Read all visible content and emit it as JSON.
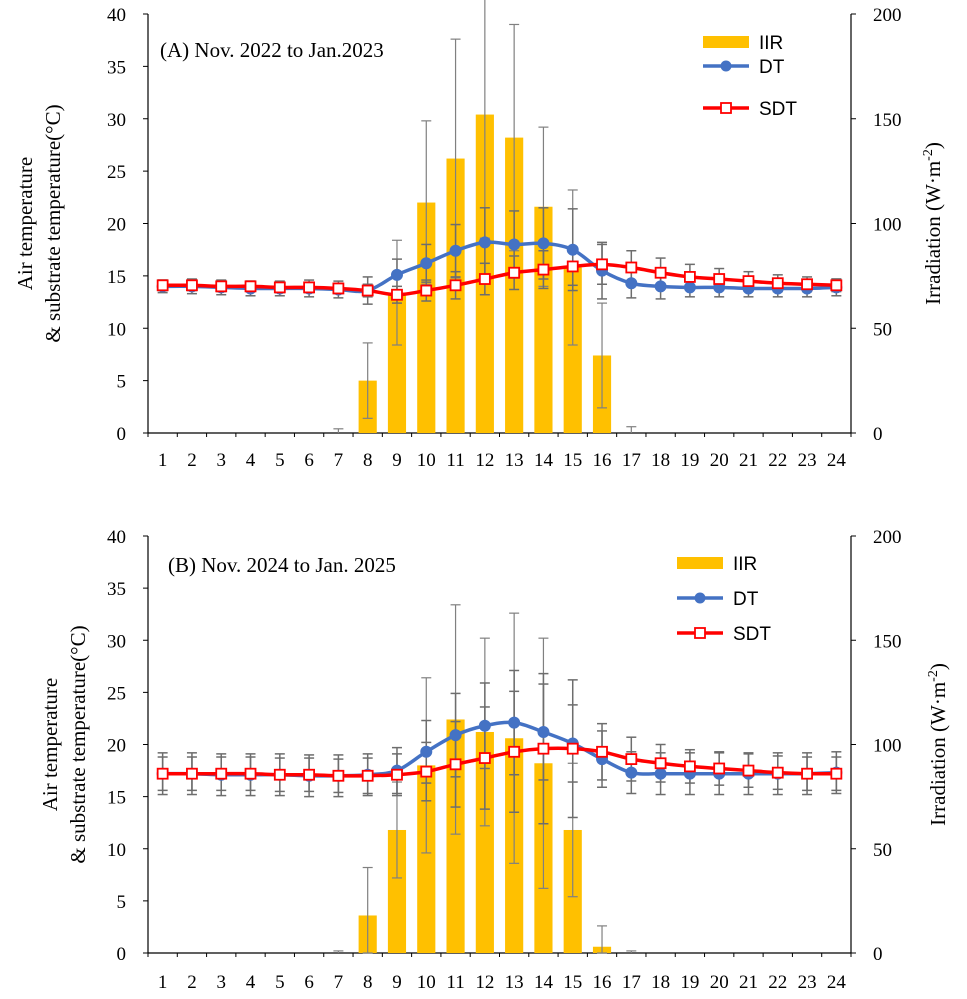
{
  "colors": {
    "iir": "#FFC000",
    "dt": "#4472C4",
    "sdt": "#FF0000",
    "err": "#808080"
  },
  "chart_data": [
    {
      "type": "bar+line",
      "title": "(A) Nov. 2022 to Jan.2023",
      "ylabel_line1": "Air temperature",
      "ylabel_line2": "& substrate temperature(°C)",
      "y2label": "Irradiation (W·m",
      "y2label_sup": "-2",
      "y2label_end": ")",
      "ylim": [
        0,
        40
      ],
      "y2lim": [
        0,
        200
      ],
      "yticks": [
        "0",
        "5",
        "10",
        "15",
        "20",
        "25",
        "30",
        "35",
        "40"
      ],
      "y2ticks": [
        "0",
        "50",
        "100",
        "150",
        "200"
      ],
      "categories": [
        "1",
        "2",
        "3",
        "4",
        "5",
        "6",
        "7",
        "8",
        "9",
        "10",
        "11",
        "12",
        "13",
        "14",
        "15",
        "16",
        "17",
        "18",
        "19",
        "20",
        "21",
        "22",
        "23",
        "24"
      ],
      "legend": [
        "IIR",
        "DT",
        "SDT"
      ],
      "series": [
        {
          "name": "IIR",
          "axis": "right",
          "values": [
            0,
            0,
            0,
            0,
            0,
            0,
            0,
            25,
            67,
            110,
            131,
            152,
            141,
            108,
            79,
            37,
            0,
            0,
            0,
            0,
            0,
            0,
            0,
            0
          ],
          "errors": [
            0,
            0,
            0,
            0,
            0,
            0,
            2,
            18,
            25,
            39,
            57,
            59,
            54,
            38,
            37,
            25,
            3,
            0,
            0,
            0,
            0,
            0,
            0,
            0
          ]
        },
        {
          "name": "DT",
          "axis": "left",
          "values": [
            14.0,
            14.0,
            13.9,
            13.8,
            13.8,
            13.8,
            13.7,
            13.6,
            15.1,
            16.2,
            17.4,
            18.2,
            18.0,
            18.1,
            17.5,
            15.5,
            14.3,
            14.0,
            13.9,
            13.9,
            13.8,
            13.8,
            13.8,
            13.9
          ],
          "errors": [
            0.6,
            0.7,
            0.7,
            0.7,
            0.7,
            0.8,
            0.8,
            1.3,
            1.5,
            1.8,
            2.5,
            3.3,
            3.2,
            3.4,
            3.9,
            2.7,
            1.4,
            1.2,
            0.9,
            0.9,
            0.8,
            0.8,
            0.8,
            0.8
          ]
        },
        {
          "name": "SDT",
          "axis": "left",
          "values": [
            14.1,
            14.1,
            14.0,
            14.0,
            13.9,
            13.9,
            13.8,
            13.6,
            13.2,
            13.6,
            14.1,
            14.7,
            15.3,
            15.6,
            15.9,
            16.1,
            15.8,
            15.3,
            14.9,
            14.7,
            14.5,
            14.3,
            14.2,
            14.1
          ],
          "errors": [
            0.5,
            0.5,
            0.5,
            0.5,
            0.5,
            0.5,
            0.5,
            0.6,
            0.8,
            1.0,
            1.3,
            1.5,
            1.6,
            1.8,
            1.8,
            1.9,
            1.6,
            1.4,
            1.2,
            1.0,
            0.9,
            0.8,
            0.7,
            0.6
          ]
        }
      ]
    },
    {
      "type": "bar+line",
      "title": "(B) Nov. 2024 to Jan. 2025",
      "ylabel_line1": "Air temperature",
      "ylabel_line2": "& substrate temperature(°C)",
      "y2label": "Irradiation (W·m",
      "y2label_sup": "-2",
      "y2label_end": ")",
      "ylim": [
        0,
        40
      ],
      "y2lim": [
        0,
        200
      ],
      "yticks": [
        "0",
        "5",
        "10",
        "15",
        "20",
        "25",
        "30",
        "35",
        "40"
      ],
      "y2ticks": [
        "0",
        "50",
        "100",
        "150",
        "200"
      ],
      "categories": [
        "1",
        "2",
        "3",
        "4",
        "5",
        "6",
        "7",
        "8",
        "9",
        "10",
        "11",
        "12",
        "13",
        "14",
        "15",
        "16",
        "17",
        "18",
        "19",
        "20",
        "21",
        "22",
        "23",
        "24"
      ],
      "legend": [
        "IIR",
        "DT",
        "SDT"
      ],
      "series": [
        {
          "name": "IIR",
          "axis": "right",
          "values": [
            0,
            0,
            0,
            0,
            0,
            0,
            0,
            18,
            59,
            90,
            112,
            106,
            103,
            91,
            59,
            3,
            0,
            0,
            0,
            0,
            0,
            0,
            0,
            0
          ],
          "errors": [
            0,
            0,
            0,
            0,
            0,
            0,
            1,
            23,
            23,
            42,
            55,
            45,
            60,
            60,
            32,
            10,
            1,
            0,
            0,
            0,
            0,
            0,
            0,
            0
          ]
        },
        {
          "name": "DT",
          "axis": "left",
          "values": [
            17.2,
            17.2,
            17.1,
            17.1,
            17.1,
            17.0,
            17.0,
            17.1,
            17.5,
            19.3,
            20.9,
            21.8,
            22.1,
            21.2,
            20.1,
            18.6,
            17.3,
            17.2,
            17.2,
            17.2,
            17.2,
            17.2,
            17.2,
            17.3
          ],
          "errors": [
            2.0,
            2.0,
            2.0,
            2.0,
            2.0,
            2.0,
            2.0,
            2.0,
            2.2,
            3.0,
            4.0,
            4.1,
            5.0,
            4.6,
            3.7,
            2.7,
            2.0,
            2.0,
            2.0,
            2.0,
            2.0,
            2.0,
            2.0,
            2.0
          ]
        },
        {
          "name": "SDT",
          "axis": "left",
          "values": [
            17.2,
            17.2,
            17.2,
            17.2,
            17.1,
            17.1,
            17.0,
            17.0,
            17.1,
            17.4,
            18.1,
            18.7,
            19.3,
            19.6,
            19.6,
            19.3,
            18.6,
            18.2,
            17.9,
            17.7,
            17.5,
            17.3,
            17.2,
            17.2
          ],
          "errors": [
            1.6,
            1.6,
            1.6,
            1.6,
            1.6,
            1.6,
            1.6,
            1.7,
            2.0,
            2.8,
            4.1,
            4.9,
            5.8,
            7.2,
            6.6,
            2.7,
            2.1,
            1.8,
            1.6,
            1.6,
            1.6,
            1.6,
            1.6,
            1.6
          ]
        }
      ]
    }
  ]
}
